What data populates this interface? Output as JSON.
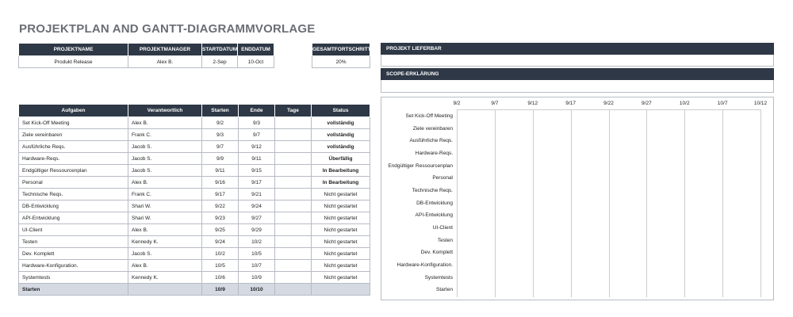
{
  "title": "PROJEKTPLAN AND GANTT-DIAGRAMMVORLAGE",
  "project": {
    "headers": [
      "PROJEKTNAME",
      "PROJEKTMANAGER",
      "STARTDATUM",
      "ENDDATUM"
    ],
    "values": [
      "Produkt Release",
      "Alex B.",
      "2-Sep",
      "10-Oct"
    ]
  },
  "progress": {
    "header": "GESAMTFORTSCHRITT",
    "value": "20%"
  },
  "deliverable": {
    "header": "PROJEKT LIEFERBAR",
    "value": ""
  },
  "scope": {
    "header": "SCOPE-ERKLÄRUNG",
    "value": ""
  },
  "tasks": {
    "headers": [
      "Aufgaben",
      "Verantwortlich",
      "Starten",
      "Ende",
      "Tage",
      "Status"
    ],
    "rows": [
      {
        "task": "Set Kick-Off Meeting",
        "owner": "Alex B.",
        "start": "9/2",
        "end": "9/3",
        "days": "",
        "status": "vollständig",
        "kind": "done"
      },
      {
        "task": "Ziele vereinbaren",
        "owner": "Frank C.",
        "start": "9/3",
        "end": "9/7",
        "days": "",
        "status": "vollständig",
        "kind": "done"
      },
      {
        "task": "Ausführliche Reqs.",
        "owner": "Jacob S.",
        "start": "9/7",
        "end": "9/12",
        "days": "",
        "status": "vollständig",
        "kind": "done"
      },
      {
        "task": "Hardware-Reqs.",
        "owner": "Jacob S.",
        "start": "9/9",
        "end": "9/11",
        "days": "",
        "status": "Überfällig",
        "kind": "over"
      },
      {
        "task": "Endgültiger Ressourcenplan",
        "owner": "Jacob S.",
        "start": "9/11",
        "end": "9/15",
        "days": "",
        "status": "In Bearbeitung",
        "kind": "prog"
      },
      {
        "task": "Personal",
        "owner": "Alex B.",
        "start": "9/16",
        "end": "9/17",
        "days": "",
        "status": "In Bearbeitung",
        "kind": "prog"
      },
      {
        "task": "Technische Reqs.",
        "owner": "Frank C.",
        "start": "9/17",
        "end": "9/21",
        "days": "",
        "status": "Nicht gestartet",
        "kind": "none"
      },
      {
        "task": "DB-Entwicklung",
        "owner": "Shari W.",
        "start": "9/22",
        "end": "9/24",
        "days": "",
        "status": "Nicht gestartet",
        "kind": "none"
      },
      {
        "task": "API-Entwicklung",
        "owner": "Shari W.",
        "start": "9/23",
        "end": "9/27",
        "days": "",
        "status": "Nicht gestartet",
        "kind": "none"
      },
      {
        "task": "UI-Client",
        "owner": "Alex B.",
        "start": "9/25",
        "end": "9/29",
        "days": "",
        "status": "Nicht gestartet",
        "kind": "none"
      },
      {
        "task": "Testen",
        "owner": "Kennedy K.",
        "start": "9/24",
        "end": "10/2",
        "days": "",
        "status": "Nicht gestartet",
        "kind": "none"
      },
      {
        "task": "Dev. Komplett",
        "owner": "Jacob S.",
        "start": "10/2",
        "end": "10/5",
        "days": "",
        "status": "Nicht gestartet",
        "kind": "none"
      },
      {
        "task": "Hardware-Konfiguration.",
        "owner": "Alex B.",
        "start": "10/5",
        "end": "10/7",
        "days": "",
        "status": "Nicht gestartet",
        "kind": "none"
      },
      {
        "task": "Systemtests",
        "owner": "Kennedy K.",
        "start": "10/6",
        "end": "10/9",
        "days": "",
        "status": "Nicht gestartet",
        "kind": "none"
      }
    ],
    "footer": {
      "task": "Starten",
      "owner": "",
      "start": "10/9",
      "end": "10/10",
      "days": "",
      "status": ""
    }
  },
  "status_colors": {
    "done": "#1f8a2e",
    "over": "#e01a1a",
    "prog": "#f07b14",
    "none": "#8a8a8a"
  },
  "gantt": {
    "x_ticks": [
      "9/2",
      "9/7",
      "9/12",
      "9/17",
      "9/22",
      "9/27",
      "10/2",
      "10/7",
      "10/12"
    ],
    "categories": [
      "Set Kick-Off Meeting",
      "Ziele vereinbaren",
      "Ausführliche Reqs.",
      "Hardware-Reqs.",
      "Endgültiger Ressourcenplan",
      "Personal",
      "Technische Reqs.",
      "DB-Entwicklung",
      "API-Entwicklung",
      "UI-Client",
      "Testen",
      "Dev. Komplett",
      "Hardware-Konfiguration.",
      "Systemtests",
      "Starten"
    ]
  }
}
